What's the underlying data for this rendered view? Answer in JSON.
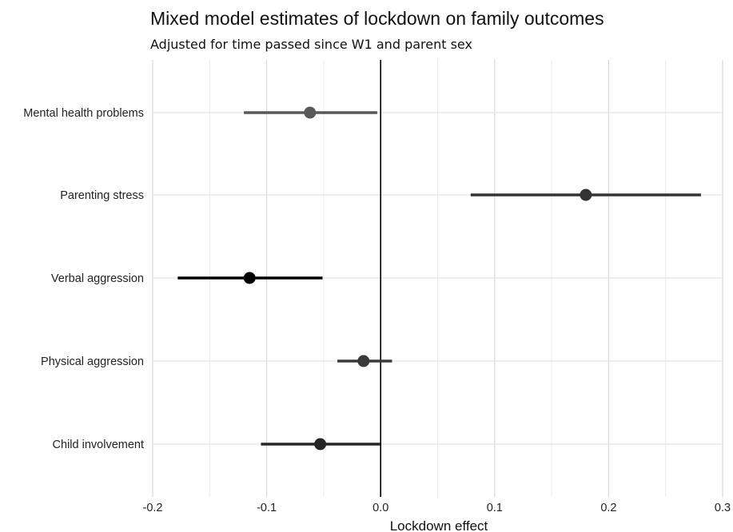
{
  "chart_data": {
    "type": "scatter",
    "subtype": "forest-plot",
    "title": "Mixed model estimates of lockdown on family outcomes",
    "subtitle": "Adjusted for time passed since W1 and parent sex",
    "xlabel": "Lockdown effect",
    "ylabel": "",
    "xlim": [
      -0.2,
      0.3
    ],
    "x_ticks": [
      -0.2,
      -0.1,
      0.0,
      0.1,
      0.2,
      0.3
    ],
    "x_tick_labels": [
      "-0.2",
      "-0.1",
      "0.0",
      "0.1",
      "0.2",
      "0.3"
    ],
    "reference_line": 0.0,
    "grid": true,
    "categories": [
      "Mental health problems",
      "Parenting stress",
      "Verbal aggression",
      "Physical aggression",
      "Child involvement"
    ],
    "estimates": [
      -0.062,
      0.18,
      -0.115,
      -0.015,
      -0.053
    ],
    "ci_lower": [
      -0.12,
      0.079,
      -0.178,
      -0.038,
      -0.105
    ],
    "ci_upper": [
      -0.003,
      0.281,
      -0.051,
      0.01,
      0.0
    ],
    "colors": [
      "#595959",
      "#333333",
      "#000000",
      "#3a3a3a",
      "#262626"
    ]
  }
}
